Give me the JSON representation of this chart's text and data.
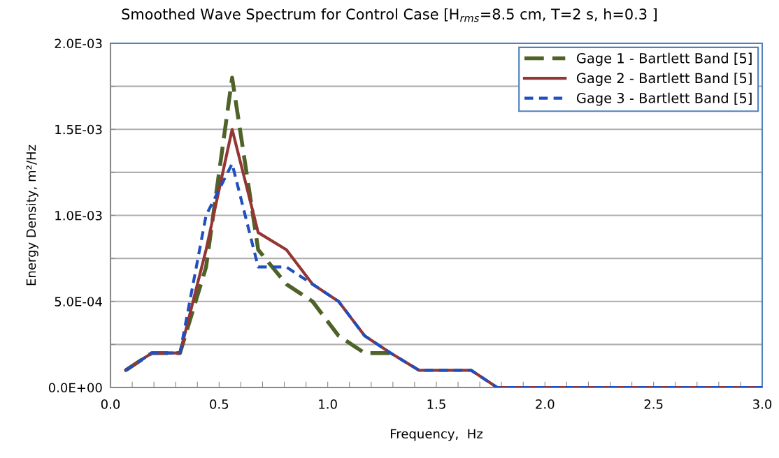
{
  "chart_data": {
    "type": "line",
    "title": "Smoothed Wave Spectrum for Control Case [H$_{rms}$=8.5 cm, T=2 s, h=0.3 ]",
    "xlabel": "Frequency,  Hz",
    "ylabel": "Energy Density, m²/Hz",
    "x": [
      0.07,
      0.19,
      0.32,
      0.44,
      0.56,
      0.68,
      0.81,
      0.93,
      1.05,
      1.17,
      1.29,
      1.42,
      1.54,
      1.66,
      1.78,
      1.9,
      2.03,
      2.15,
      2.27,
      2.39,
      2.51,
      2.64,
      2.76,
      2.88,
      3.0
    ],
    "series": [
      {
        "name": "Gage 1 - Bartlett Band [5]",
        "color": "#4f6228",
        "line_style": "dashed",
        "values": [
          0.0001,
          0.0002,
          0.0002,
          0.0007,
          0.0018,
          0.0008,
          0.0006,
          0.0005,
          0.0003,
          0.0002,
          0.0002,
          null,
          null,
          null,
          null,
          null,
          null,
          null,
          null,
          null,
          null,
          null,
          null,
          null,
          null
        ]
      },
      {
        "name": "Gage 2 - Bartlett Band [5]",
        "color": "#943634",
        "line_style": "solid",
        "values": [
          0.0001,
          0.0002,
          0.0002,
          0.0008,
          0.0015,
          0.0009,
          0.0008,
          0.0006,
          0.0005,
          0.0003,
          0.0002,
          0.0001,
          0.0001,
          0.0001,
          0,
          0,
          0,
          0,
          0,
          0,
          0,
          0,
          0,
          0,
          0
        ]
      },
      {
        "name": "Gage 3 - Bartlett Band [5]",
        "color": "#1f4fc0",
        "line_style": "dotted",
        "values": [
          0.0001,
          0.0002,
          0.0002,
          0.001,
          0.0013,
          0.0007,
          0.0007,
          0.0006,
          0.0005,
          0.0003,
          0.0002,
          0.0001,
          0.0001,
          0.0001,
          0,
          0,
          0,
          0,
          0,
          0,
          0,
          0,
          0,
          0,
          0
        ]
      }
    ],
    "xlim": [
      0,
      3.0
    ],
    "xticks": [
      {
        "value": 0,
        "label": "0.0"
      },
      {
        "value": 0.1,
        "label": null
      },
      {
        "value": 0.2,
        "label": null
      },
      {
        "value": 0.3,
        "label": null
      },
      {
        "value": 0.4,
        "label": null
      },
      {
        "value": 0.5,
        "label": "0.5"
      },
      {
        "value": 0.6,
        "label": null
      },
      {
        "value": 0.7,
        "label": null
      },
      {
        "value": 0.8,
        "label": null
      },
      {
        "value": 0.9,
        "label": null
      },
      {
        "value": 1.0,
        "label": "1.0"
      },
      {
        "value": 1.1,
        "label": null
      },
      {
        "value": 1.2,
        "label": null
      },
      {
        "value": 1.3,
        "label": null
      },
      {
        "value": 1.4,
        "label": null
      },
      {
        "value": 1.5,
        "label": "1.5"
      },
      {
        "value": 1.6,
        "label": null
      },
      {
        "value": 1.7,
        "label": null
      },
      {
        "value": 1.8,
        "label": null
      },
      {
        "value": 1.9,
        "label": null
      },
      {
        "value": 2.0,
        "label": "2.0"
      },
      {
        "value": 2.1,
        "label": null
      },
      {
        "value": 2.2,
        "label": null
      },
      {
        "value": 2.3,
        "label": null
      },
      {
        "value": 2.4,
        "label": null
      },
      {
        "value": 2.5,
        "label": "2.5"
      },
      {
        "value": 2.6,
        "label": null
      },
      {
        "value": 2.7,
        "label": null
      },
      {
        "value": 2.8,
        "label": null
      },
      {
        "value": 2.9,
        "label": null
      },
      {
        "value": 3.0,
        "label": "3.0"
      }
    ],
    "ylim": [
      0,
      0.002
    ],
    "yticks": [
      {
        "value": 0,
        "label": "0.0E+00"
      },
      {
        "value": 0.00025,
        "label": null
      },
      {
        "value": 0.0005,
        "label": "5.0E-04"
      },
      {
        "value": 0.00075,
        "label": null
      },
      {
        "value": 0.001,
        "label": "1.0E-03"
      },
      {
        "value": 0.00125,
        "label": null
      },
      {
        "value": 0.0015,
        "label": "1.5E-03"
      },
      {
        "value": 0.00175,
        "label": null
      },
      {
        "value": 0.002,
        "label": "2.0E-03"
      }
    ],
    "grid": "y",
    "legend": "top right",
    "marker": "none"
  }
}
